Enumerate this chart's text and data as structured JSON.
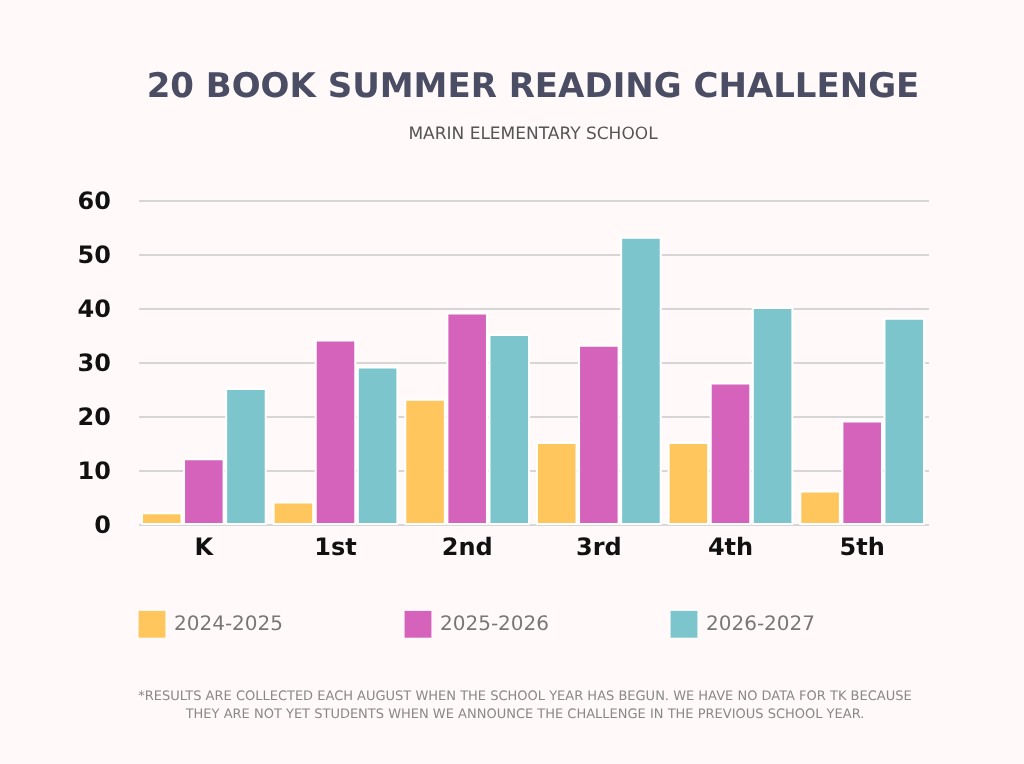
{
  "chart_data": {
    "type": "bar",
    "title": "20 BOOK SUMMER READING CHALLENGE",
    "subtitle": "MARIN ELEMENTARY SCHOOL",
    "categories": [
      "K",
      "1st",
      "2nd",
      "3rd",
      "4th",
      "5th"
    ],
    "series": [
      {
        "name": "2024-2025",
        "color": "#ffc65e",
        "values": [
          2,
          4,
          23,
          15,
          15,
          6
        ]
      },
      {
        "name": "2025-2026",
        "color": "#d563bb",
        "values": [
          12,
          34,
          39,
          33,
          26,
          19
        ]
      },
      {
        "name": "2026-2027",
        "color": "#7cc5cd",
        "values": [
          25,
          29,
          35,
          53,
          40,
          38
        ]
      }
    ],
    "ylim": [
      0,
      60
    ],
    "yticks": [
      0,
      10,
      20,
      30,
      40,
      50,
      60
    ],
    "grid": "y",
    "legend": "bottom",
    "annotations": [
      "*RESULTS ARE COLLECTED EACH AUGUST WHEN THE SCHOOL YEAR HAS BEGUN.  WE HAVE NO DATA FOR TK BECAUSE THEY ARE NOT YET STUDENTS WHEN WE ANNOUNCE THE CHALLENGE IN THE PREVIOUS SCHOOL YEAR."
    ]
  }
}
